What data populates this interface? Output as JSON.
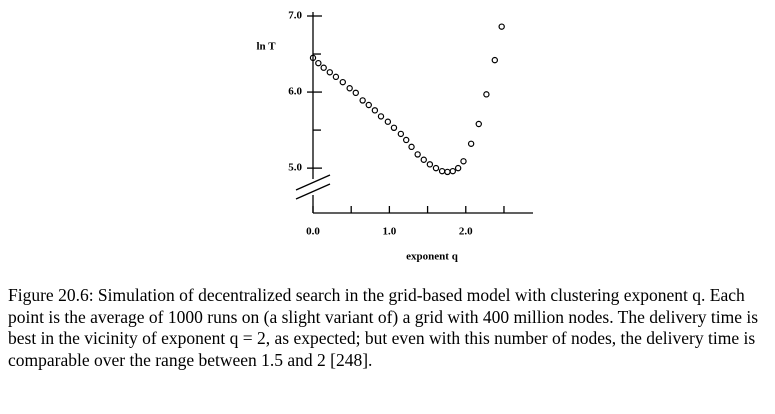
{
  "chart_data": {
    "type": "scatter",
    "y_label": "ln T",
    "x_label": "exponent q",
    "x": [
      0,
      0.07,
      0.14,
      0.22,
      0.3,
      0.39,
      0.48,
      0.56,
      0.65,
      0.73,
      0.81,
      0.89,
      0.98,
      1.06,
      1.15,
      1.22,
      1.29,
      1.37,
      1.45,
      1.53,
      1.61,
      1.69,
      1.76,
      1.83,
      1.9,
      1.97,
      2.07,
      2.17,
      2.27,
      2.38,
      2.47
    ],
    "values": [
      6.45,
      6.38,
      6.32,
      6.26,
      6.2,
      6.13,
      6.05,
      5.99,
      5.89,
      5.83,
      5.76,
      5.68,
      5.61,
      5.53,
      5.45,
      5.37,
      5.28,
      5.18,
      5.11,
      5.05,
      5.0,
      4.96,
      4.95,
      4.96,
      5.0,
      5.09,
      5.32,
      5.58,
      5.97,
      6.42,
      6.86
    ],
    "color": "#000000",
    "xlim": [
      0,
      2.88
    ],
    "ylim": [
      4.41,
      7.0
    ],
    "xticks": [
      {
        "value": 0,
        "label": "0.0"
      },
      {
        "value": 1,
        "label": "1.0"
      },
      {
        "value": 2,
        "label": "2.0"
      }
    ],
    "xminor": [
      0.5,
      1.5,
      2.5
    ],
    "yticks": [
      {
        "value": 5,
        "label": "5.0"
      },
      {
        "value": 6,
        "label": "6.0"
      },
      {
        "value": 7,
        "label": "7.0"
      }
    ],
    "yminor": [
      5.5,
      6.5
    ]
  },
  "caption": "Figure 20.6: Simulation of decentralized search in the grid-based model with clustering exponent q. Each point is the average of 1000 runs on (a slight variant of) a grid with 400 million nodes. The delivery time is best in the vicinity of exponent q = 2, as expected; but even with this number of nodes, the delivery time is comparable over the range between 1.5 and 2 [248]."
}
